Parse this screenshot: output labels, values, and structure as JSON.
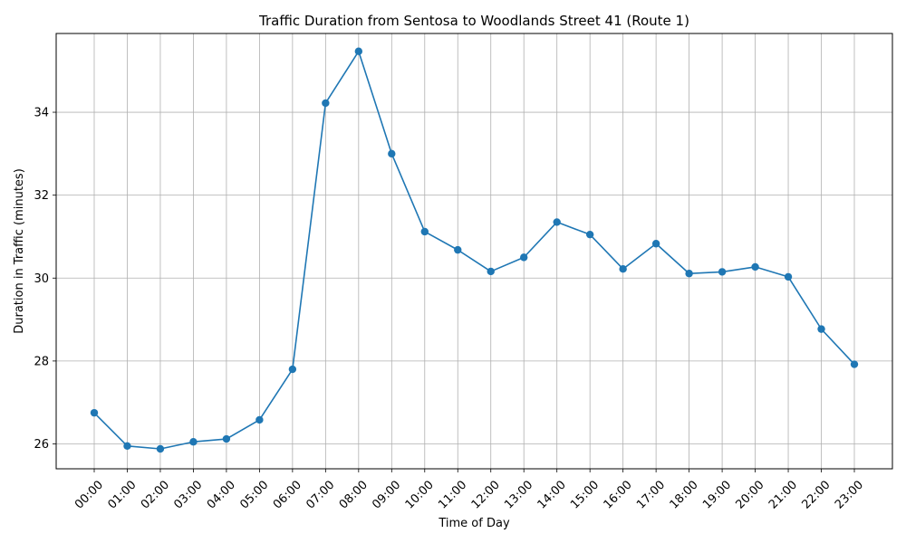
{
  "chart_data": {
    "type": "line",
    "title": "Traffic Duration from Sentosa to Woodlands Street 41 (Route 1)",
    "xlabel": "Time of Day",
    "ylabel": "Duration in Traffic (minutes)",
    "categories": [
      "00:00",
      "01:00",
      "02:00",
      "03:00",
      "04:00",
      "05:00",
      "06:00",
      "07:00",
      "08:00",
      "09:00",
      "10:00",
      "11:00",
      "12:00",
      "13:00",
      "14:00",
      "15:00",
      "16:00",
      "17:00",
      "18:00",
      "19:00",
      "20:00",
      "21:00",
      "22:00",
      "23:00"
    ],
    "series": [
      {
        "values": [
          26.75,
          25.95,
          25.88,
          26.05,
          26.12,
          26.58,
          27.8,
          34.22,
          35.47,
          33.0,
          31.12,
          30.68,
          30.16,
          30.5,
          31.35,
          31.05,
          30.22,
          30.83,
          30.11,
          30.15,
          30.27,
          30.03,
          28.77,
          27.92
        ],
        "color": "#1f77b4",
        "marker": "circle"
      }
    ],
    "yticks": [
      26,
      28,
      30,
      32,
      34
    ],
    "ylim": [
      25.4,
      35.9
    ],
    "grid": true,
    "legend": "none"
  }
}
